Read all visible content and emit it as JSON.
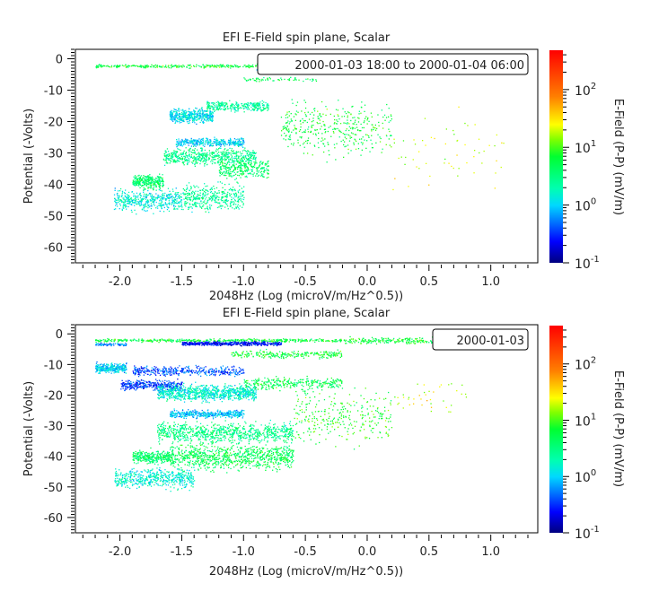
{
  "chart_data": [
    {
      "type": "scatter",
      "title": "EFI  E-Field spin plane, Scalar",
      "xlabel": "2048Hz (Log (microV/m/Hz^0.5))",
      "ylabel": "Potential (-Volts)",
      "xlim": [
        -2.36,
        1.38
      ],
      "ylim": [
        -65,
        3
      ],
      "xticks": [
        "-2.0",
        "-1.5",
        "-1.0",
        "-0.5",
        "0.0",
        "0.5",
        "1.0"
      ],
      "yticks": [
        "0",
        "-10",
        "-20",
        "-30",
        "-40",
        "-50",
        "-60"
      ],
      "legend": "2000-01-03 18:00 to 2000-01-04 06:00",
      "legend_position": "top-right",
      "colorbar": {
        "label": "E-Field (P-P) (mV/m)",
        "scale": "log",
        "range": [
          0.1,
          480
        ],
        "ticks": [
          {
            "base": "10",
            "exp": "-1",
            "value": 0.1
          },
          {
            "base": "10",
            "exp": "0",
            "value": 1
          },
          {
            "base": "10",
            "exp": "1",
            "value": 10
          },
          {
            "base": "10",
            "exp": "2",
            "value": 100
          }
        ],
        "colormap": "rainbow"
      },
      "clusters": [
        {
          "x": [
            -2.2,
            -0.8
          ],
          "y": -2.2,
          "sy": 0.5,
          "value": 6,
          "n": 300
        },
        {
          "x": [
            -0.9,
            0.6
          ],
          "y": -3.2,
          "sy": 0.5,
          "value": 0.8,
          "n": 300
        },
        {
          "x": [
            -0.9,
            0.9
          ],
          "y": -1.5,
          "sy": 0.4,
          "value": 8,
          "n": 120
        },
        {
          "x": [
            -1.0,
            -0.4
          ],
          "y": -6.5,
          "sy": 0.6,
          "value": 5,
          "n": 60
        },
        {
          "x": [
            -1.6,
            -1.25
          ],
          "y": -18,
          "sy": 2,
          "value": 1.2,
          "n": 450
        },
        {
          "x": [
            -1.3,
            -0.8
          ],
          "y": -15,
          "sy": 1.5,
          "value": 2.5,
          "n": 300
        },
        {
          "x": [
            -1.55,
            -1.0
          ],
          "y": -26.5,
          "sy": 1.2,
          "value": 1,
          "n": 350
        },
        {
          "x": [
            -1.65,
            -0.9
          ],
          "y": -31,
          "sy": 2.5,
          "value": 3,
          "n": 600
        },
        {
          "x": [
            -1.2,
            -0.8
          ],
          "y": -35,
          "sy": 3,
          "value": 4,
          "n": 300
        },
        {
          "x": [
            -1.9,
            -1.65
          ],
          "y": -39,
          "sy": 2,
          "value": 4,
          "n": 300
        },
        {
          "x": [
            -2.05,
            -1.5
          ],
          "y": -45,
          "sy": 3,
          "value": 1.5,
          "n": 450
        },
        {
          "x": [
            -1.5,
            -1.0
          ],
          "y": -44,
          "sy": 4,
          "value": 2.5,
          "n": 400
        },
        {
          "x": [
            -0.7,
            0.2
          ],
          "y": -22,
          "sy": 8,
          "value": 6,
          "n": 400
        },
        {
          "x": [
            0.2,
            1.1
          ],
          "y": -30,
          "sy": 12,
          "value": 20,
          "n": 60
        }
      ]
    },
    {
      "type": "scatter",
      "title": "EFI  E-Field spin plane, Scalar",
      "xlabel": "2048Hz (Log (microV/m/Hz^0.5))",
      "ylabel": "Potential (-Volts)",
      "xlim": [
        -2.36,
        1.38
      ],
      "ylim": [
        -65,
        3
      ],
      "xticks": [
        "-2.0",
        "-1.5",
        "-1.0",
        "-0.5",
        "0.0",
        "0.5",
        "1.0"
      ],
      "yticks": [
        "0",
        "-10",
        "-20",
        "-30",
        "-40",
        "-50",
        "-60"
      ],
      "legend": "2000-01-03",
      "legend_position": "top-right",
      "colorbar": {
        "label": "E-Field (P-P) (mV/m)",
        "scale": "log",
        "range": [
          0.1,
          480
        ],
        "ticks": [
          {
            "base": "10",
            "exp": "-1",
            "value": 0.1
          },
          {
            "base": "10",
            "exp": "0",
            "value": 1
          },
          {
            "base": "10",
            "exp": "1",
            "value": 10
          },
          {
            "base": "10",
            "exp": "2",
            "value": 100
          }
        ],
        "colormap": "rainbow"
      },
      "clusters": [
        {
          "x": [
            -2.2,
            -0.2
          ],
          "y": -2,
          "sy": 0.5,
          "value": 6,
          "n": 450
        },
        {
          "x": [
            -1.5,
            -0.7
          ],
          "y": -3,
          "sy": 0.6,
          "value": 0.25,
          "n": 500
        },
        {
          "x": [
            -0.2,
            0.9
          ],
          "y": -2,
          "sy": 1,
          "value": 6,
          "n": 300
        },
        {
          "x": [
            -2.2,
            -1.95
          ],
          "y": -3.3,
          "sy": 0.4,
          "value": 0.6,
          "n": 80
        },
        {
          "x": [
            -1.1,
            -0.2
          ],
          "y": -6.5,
          "sy": 1.2,
          "value": 6,
          "n": 250
        },
        {
          "x": [
            -2.2,
            -1.95
          ],
          "y": -11,
          "sy": 1.5,
          "value": 1,
          "n": 300
        },
        {
          "x": [
            -1.9,
            -1.0
          ],
          "y": -12,
          "sy": 1.5,
          "value": 0.4,
          "n": 400
        },
        {
          "x": [
            -2.0,
            -1.5
          ],
          "y": -16.5,
          "sy": 1.5,
          "value": 0.35,
          "n": 350
        },
        {
          "x": [
            -1.7,
            -0.9
          ],
          "y": -19,
          "sy": 2.5,
          "value": 1.5,
          "n": 900
        },
        {
          "x": [
            -1.0,
            -0.2
          ],
          "y": -16,
          "sy": 2,
          "value": 5,
          "n": 300
        },
        {
          "x": [
            -1.6,
            -1.0
          ],
          "y": -26,
          "sy": 1.2,
          "value": 0.9,
          "n": 400
        },
        {
          "x": [
            -1.7,
            -0.6
          ],
          "y": -32,
          "sy": 3,
          "value": 3,
          "n": 800
        },
        {
          "x": [
            -1.9,
            -1.6
          ],
          "y": -40,
          "sy": 2,
          "value": 4,
          "n": 300
        },
        {
          "x": [
            -1.6,
            -0.6
          ],
          "y": -40,
          "sy": 4,
          "value": 5,
          "n": 900
        },
        {
          "x": [
            -2.05,
            -1.4
          ],
          "y": -47,
          "sy": 3,
          "value": 1.5,
          "n": 500
        },
        {
          "x": [
            -0.6,
            0.2
          ],
          "y": -27,
          "sy": 8,
          "value": 8,
          "n": 300
        },
        {
          "x": [
            0.2,
            0.8
          ],
          "y": -20,
          "sy": 5,
          "value": 20,
          "n": 40
        }
      ]
    }
  ]
}
